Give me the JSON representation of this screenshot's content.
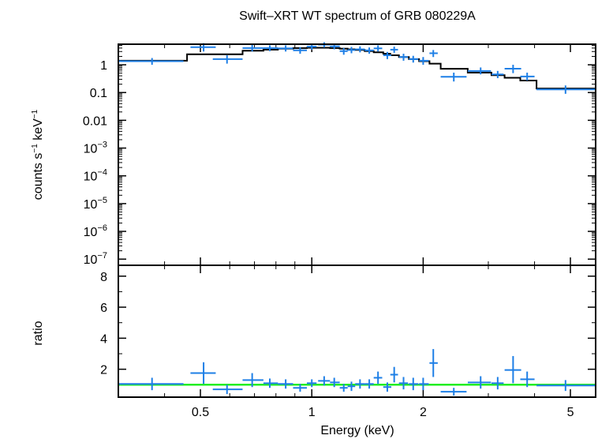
{
  "chart_data": {
    "type": "scatter",
    "title": "Swift–XRT WT spectrum of GRB 080229A",
    "xlabel": "Energy (keV)",
    "x_scale": "log",
    "xlim": [
      0.3,
      5.85
    ],
    "x_ticks": [
      {
        "value": 0.5,
        "label": "0.5"
      },
      {
        "value": 1,
        "label": "1"
      },
      {
        "value": 2,
        "label": "2"
      },
      {
        "value": 5,
        "label": "5"
      }
    ],
    "colors": {
      "data": "#1e7fe6",
      "model": "#000000",
      "unity": "#22ee22",
      "frame": "#000000"
    },
    "panels": [
      {
        "name": "spectrum",
        "ylabel_main": "counts s",
        "ylabel_sup1": "−1",
        "ylabel_mid": " keV",
        "ylabel_sup2": "−1",
        "y_scale": "log",
        "ylim": [
          6e-08,
          5.5
        ],
        "y_ticks": [
          {
            "value": 1,
            "label": "1"
          },
          {
            "value": 0.1,
            "label": "0.1"
          },
          {
            "value": 0.01,
            "label": "0.01"
          },
          {
            "value": 0.001,
            "base": "10",
            "exp": "−3"
          },
          {
            "value": 0.0001,
            "base": "10",
            "exp": "−4"
          },
          {
            "value": 1e-05,
            "base": "10",
            "exp": "−5"
          },
          {
            "value": 1e-06,
            "base": "10",
            "exp": "−6"
          },
          {
            "value": 1e-07,
            "base": "10",
            "exp": "−7"
          }
        ],
        "series": [
          {
            "kind": "data",
            "points": [
              {
                "x": 0.37,
                "xlo": 0.3,
                "xhi": 0.45,
                "y": 1.35,
                "ylo": 1.0,
                "yhi": 1.75
              },
              {
                "x": 0.51,
                "xlo": 0.47,
                "xhi": 0.55,
                "y": 4.3,
                "ylo": 3.0,
                "yhi": 6.0
              },
              {
                "x": 0.59,
                "xlo": 0.54,
                "xhi": 0.65,
                "y": 1.6,
                "ylo": 1.1,
                "yhi": 2.2
              },
              {
                "x": 0.69,
                "xlo": 0.65,
                "xhi": 0.74,
                "y": 4.0,
                "ylo": 3.0,
                "yhi": 5.3
              },
              {
                "x": 0.77,
                "xlo": 0.74,
                "xhi": 0.81,
                "y": 4.0,
                "ylo": 3.1,
                "yhi": 5.0
              },
              {
                "x": 0.85,
                "xlo": 0.81,
                "xhi": 0.89,
                "y": 3.9,
                "ylo": 3.0,
                "yhi": 5.0
              },
              {
                "x": 0.93,
                "xlo": 0.89,
                "xhi": 0.97,
                "y": 3.3,
                "ylo": 2.5,
                "yhi": 4.3
              },
              {
                "x": 1.0,
                "xlo": 0.97,
                "xhi": 1.03,
                "y": 4.5,
                "ylo": 3.5,
                "yhi": 5.6
              },
              {
                "x": 1.08,
                "xlo": 1.04,
                "xhi": 1.12,
                "y": 5.3,
                "ylo": 4.2,
                "yhi": 6.5
              },
              {
                "x": 1.15,
                "xlo": 1.12,
                "xhi": 1.19,
                "y": 4.6,
                "ylo": 3.6,
                "yhi": 5.8
              },
              {
                "x": 1.22,
                "xlo": 1.19,
                "xhi": 1.25,
                "y": 3.1,
                "ylo": 2.3,
                "yhi": 4.0
              },
              {
                "x": 1.28,
                "xlo": 1.25,
                "xhi": 1.31,
                "y": 3.4,
                "ylo": 2.6,
                "yhi": 4.4
              },
              {
                "x": 1.35,
                "xlo": 1.31,
                "xhi": 1.39,
                "y": 3.6,
                "ylo": 2.8,
                "yhi": 4.6
              },
              {
                "x": 1.43,
                "xlo": 1.39,
                "xhi": 1.47,
                "y": 3.3,
                "ylo": 2.5,
                "yhi": 4.2
              },
              {
                "x": 1.51,
                "xlo": 1.47,
                "xhi": 1.55,
                "y": 3.9,
                "ylo": 3.0,
                "yhi": 5.0
              },
              {
                "x": 1.6,
                "xlo": 1.56,
                "xhi": 1.64,
                "y": 2.2,
                "ylo": 1.6,
                "yhi": 2.9
              },
              {
                "x": 1.67,
                "xlo": 1.63,
                "xhi": 1.71,
                "y": 3.5,
                "ylo": 2.7,
                "yhi": 4.5
              },
              {
                "x": 1.77,
                "xlo": 1.72,
                "xhi": 1.82,
                "y": 1.9,
                "ylo": 1.4,
                "yhi": 2.5
              },
              {
                "x": 1.88,
                "xlo": 1.83,
                "xhi": 1.94,
                "y": 1.6,
                "ylo": 1.2,
                "yhi": 2.1
              },
              {
                "x": 2.0,
                "xlo": 1.95,
                "xhi": 2.07,
                "y": 1.4,
                "ylo": 1.0,
                "yhi": 1.9
              },
              {
                "x": 2.13,
                "xlo": 2.08,
                "xhi": 2.19,
                "y": 2.6,
                "ylo": 1.9,
                "yhi": 3.4
              },
              {
                "x": 2.42,
                "xlo": 2.23,
                "xhi": 2.62,
                "y": 0.37,
                "ylo": 0.25,
                "yhi": 0.52
              },
              {
                "x": 2.86,
                "xlo": 2.64,
                "xhi": 3.05,
                "y": 0.6,
                "ylo": 0.45,
                "yhi": 0.8
              },
              {
                "x": 3.18,
                "xlo": 3.06,
                "xhi": 3.3,
                "y": 0.45,
                "ylo": 0.33,
                "yhi": 0.6
              },
              {
                "x": 3.5,
                "xlo": 3.32,
                "xhi": 3.68,
                "y": 0.72,
                "ylo": 0.5,
                "yhi": 1.0
              },
              {
                "x": 3.82,
                "xlo": 3.66,
                "xhi": 4.0,
                "y": 0.38,
                "ylo": 0.27,
                "yhi": 0.52
              },
              {
                "x": 4.85,
                "xlo": 4.05,
                "xhi": 5.85,
                "y": 0.13,
                "ylo": 0.09,
                "yhi": 0.18
              }
            ]
          },
          {
            "kind": "model",
            "steps": [
              {
                "xlo": 0.3,
                "xhi": 0.46,
                "y": 1.4
              },
              {
                "xlo": 0.46,
                "xhi": 0.54,
                "y": 2.4
              },
              {
                "xlo": 0.54,
                "xhi": 0.65,
                "y": 2.4
              },
              {
                "xlo": 0.65,
                "xhi": 0.74,
                "y": 3.2
              },
              {
                "xlo": 0.74,
                "xhi": 0.81,
                "y": 3.5
              },
              {
                "xlo": 0.81,
                "xhi": 0.89,
                "y": 3.8
              },
              {
                "xlo": 0.89,
                "xhi": 0.97,
                "y": 4.0
              },
              {
                "xlo": 0.97,
                "xhi": 1.04,
                "y": 4.1
              },
              {
                "xlo": 1.04,
                "xhi": 1.12,
                "y": 4.1
              },
              {
                "xlo": 1.12,
                "xhi": 1.19,
                "y": 4.0
              },
              {
                "xlo": 1.19,
                "xhi": 1.25,
                "y": 3.8
              },
              {
                "xlo": 1.25,
                "xhi": 1.31,
                "y": 3.6
              },
              {
                "xlo": 1.31,
                "xhi": 1.39,
                "y": 3.4
              },
              {
                "xlo": 1.39,
                "xhi": 1.47,
                "y": 3.1
              },
              {
                "xlo": 1.47,
                "xhi": 1.56,
                "y": 2.8
              },
              {
                "xlo": 1.56,
                "xhi": 1.63,
                "y": 2.5
              },
              {
                "xlo": 1.63,
                "xhi": 1.72,
                "y": 2.2
              },
              {
                "xlo": 1.72,
                "xhi": 1.83,
                "y": 1.9
              },
              {
                "xlo": 1.83,
                "xhi": 1.95,
                "y": 1.6
              },
              {
                "xlo": 1.95,
                "xhi": 2.08,
                "y": 1.35
              },
              {
                "xlo": 2.08,
                "xhi": 2.23,
                "y": 1.1
              },
              {
                "xlo": 2.23,
                "xhi": 2.64,
                "y": 0.72
              },
              {
                "xlo": 2.64,
                "xhi": 3.06,
                "y": 0.52
              },
              {
                "xlo": 3.06,
                "xhi": 3.32,
                "y": 0.42
              },
              {
                "xlo": 3.32,
                "xhi": 3.66,
                "y": 0.34
              },
              {
                "xlo": 3.66,
                "xhi": 4.05,
                "y": 0.27
              },
              {
                "xlo": 4.05,
                "xhi": 5.85,
                "y": 0.14
              }
            ]
          }
        ]
      },
      {
        "name": "ratio",
        "ylabel": "ratio",
        "y_scale": "linear",
        "ylim": [
          0.2,
          8.7
        ],
        "y_ticks": [
          {
            "value": 2,
            "label": "2"
          },
          {
            "value": 4,
            "label": "4"
          },
          {
            "value": 6,
            "label": "6"
          },
          {
            "value": 8,
            "label": "8"
          }
        ],
        "unity_line": 1.0,
        "series": [
          {
            "kind": "data",
            "points": [
              {
                "x": 0.37,
                "xlo": 0.3,
                "xhi": 0.45,
                "y": 1.05,
                "ylo": 0.65,
                "yhi": 1.45
              },
              {
                "x": 0.51,
                "xlo": 0.47,
                "xhi": 0.55,
                "y": 1.75,
                "ylo": 1.05,
                "yhi": 2.45
              },
              {
                "x": 0.59,
                "xlo": 0.54,
                "xhi": 0.65,
                "y": 0.7,
                "ylo": 0.4,
                "yhi": 1.0
              },
              {
                "x": 0.69,
                "xlo": 0.65,
                "xhi": 0.74,
                "y": 1.3,
                "ylo": 0.85,
                "yhi": 1.75
              },
              {
                "x": 0.77,
                "xlo": 0.74,
                "xhi": 0.81,
                "y": 1.1,
                "ylo": 0.8,
                "yhi": 1.4
              },
              {
                "x": 0.85,
                "xlo": 0.81,
                "xhi": 0.89,
                "y": 1.05,
                "ylo": 0.75,
                "yhi": 1.35
              },
              {
                "x": 0.93,
                "xlo": 0.89,
                "xhi": 0.97,
                "y": 0.8,
                "ylo": 0.55,
                "yhi": 1.05
              },
              {
                "x": 1.0,
                "xlo": 0.97,
                "xhi": 1.03,
                "y": 1.1,
                "ylo": 0.85,
                "yhi": 1.35
              },
              {
                "x": 1.08,
                "xlo": 1.04,
                "xhi": 1.12,
                "y": 1.25,
                "ylo": 0.95,
                "yhi": 1.55
              },
              {
                "x": 1.15,
                "xlo": 1.12,
                "xhi": 1.19,
                "y": 1.15,
                "ylo": 0.85,
                "yhi": 1.45
              },
              {
                "x": 1.22,
                "xlo": 1.19,
                "xhi": 1.25,
                "y": 0.8,
                "ylo": 0.55,
                "yhi": 1.05
              },
              {
                "x": 1.28,
                "xlo": 1.25,
                "xhi": 1.31,
                "y": 0.9,
                "ylo": 0.6,
                "yhi": 1.2
              },
              {
                "x": 1.35,
                "xlo": 1.31,
                "xhi": 1.39,
                "y": 1.05,
                "ylo": 0.75,
                "yhi": 1.35
              },
              {
                "x": 1.43,
                "xlo": 1.39,
                "xhi": 1.47,
                "y": 1.05,
                "ylo": 0.75,
                "yhi": 1.35
              },
              {
                "x": 1.51,
                "xlo": 1.47,
                "xhi": 1.55,
                "y": 1.45,
                "ylo": 1.05,
                "yhi": 1.85
              },
              {
                "x": 1.6,
                "xlo": 1.56,
                "xhi": 1.64,
                "y": 0.85,
                "ylo": 0.55,
                "yhi": 1.15
              },
              {
                "x": 1.67,
                "xlo": 1.63,
                "xhi": 1.71,
                "y": 1.65,
                "ylo": 1.15,
                "yhi": 2.15
              },
              {
                "x": 1.77,
                "xlo": 1.72,
                "xhi": 1.82,
                "y": 1.1,
                "ylo": 0.7,
                "yhi": 1.5
              },
              {
                "x": 1.88,
                "xlo": 1.83,
                "xhi": 1.94,
                "y": 1.05,
                "ylo": 0.65,
                "yhi": 1.45
              },
              {
                "x": 2.0,
                "xlo": 1.95,
                "xhi": 2.07,
                "y": 1.05,
                "ylo": 0.65,
                "yhi": 1.45
              },
              {
                "x": 2.13,
                "xlo": 2.08,
                "xhi": 2.19,
                "y": 2.4,
                "ylo": 1.5,
                "yhi": 3.3
              },
              {
                "x": 2.42,
                "xlo": 2.23,
                "xhi": 2.62,
                "y": 0.55,
                "ylo": 0.3,
                "yhi": 0.8
              },
              {
                "x": 2.86,
                "xlo": 2.64,
                "xhi": 3.05,
                "y": 1.15,
                "ylo": 0.75,
                "yhi": 1.55
              },
              {
                "x": 3.18,
                "xlo": 3.06,
                "xhi": 3.3,
                "y": 1.1,
                "ylo": 0.7,
                "yhi": 1.5
              },
              {
                "x": 3.5,
                "xlo": 3.32,
                "xhi": 3.68,
                "y": 1.95,
                "ylo": 1.1,
                "yhi": 2.85
              },
              {
                "x": 3.82,
                "xlo": 3.66,
                "xhi": 4.0,
                "y": 1.35,
                "ylo": 0.85,
                "yhi": 1.85
              },
              {
                "x": 4.85,
                "xlo": 4.05,
                "xhi": 5.85,
                "y": 0.95,
                "ylo": 0.6,
                "yhi": 1.3
              }
            ]
          }
        ]
      }
    ]
  }
}
